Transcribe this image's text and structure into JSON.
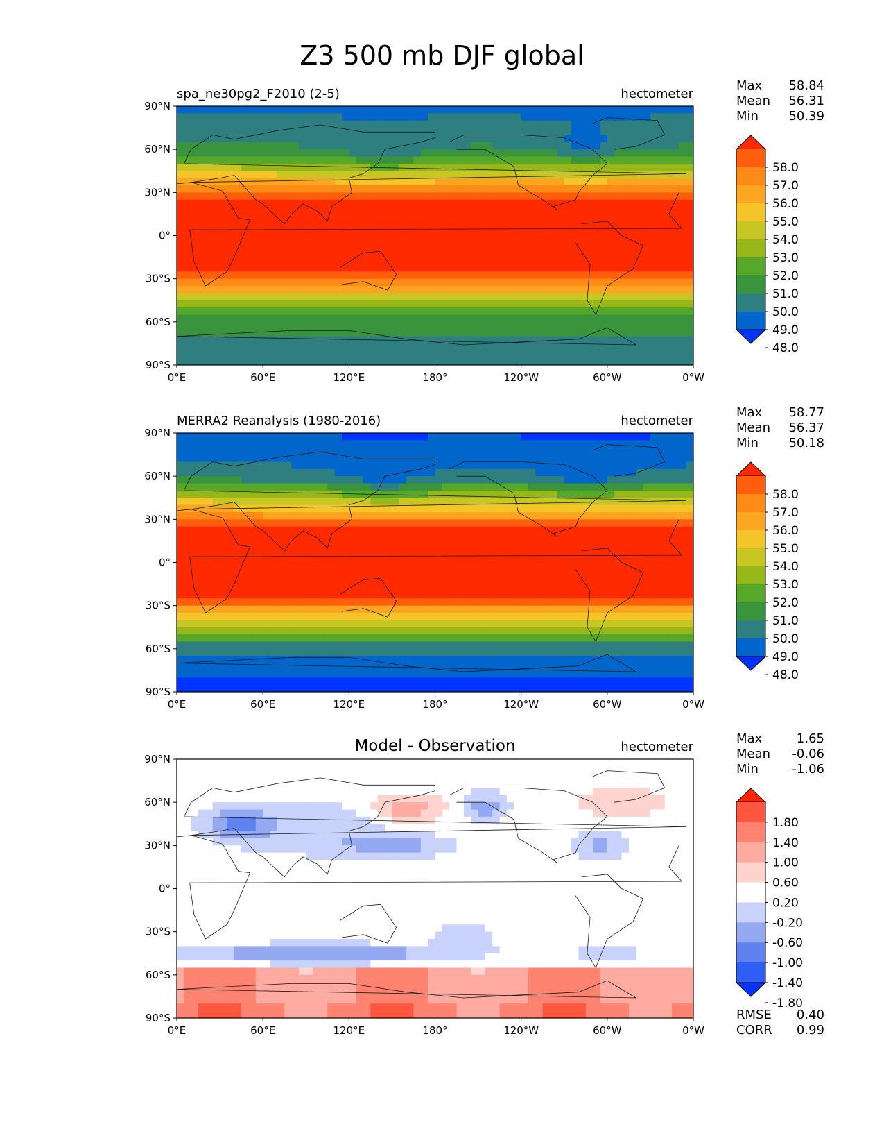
{
  "title": "Z3 500 mb DJF global",
  "colors": {
    "full_field_levels": [
      "#0033ff",
      "#0066cc",
      "#2e7f80",
      "#3a943e",
      "#55a82a",
      "#97b81a",
      "#c8c623",
      "#f4c428",
      "#fca520",
      "#ff8a15",
      "#ff5f0c",
      "#ff2a00"
    ],
    "diff_levels": [
      "#0033ff",
      "#2e5ef5",
      "#5e83f0",
      "#95a9f2",
      "#c8d2fa",
      "#ffffff",
      "#ffd4cf",
      "#ffaba1",
      "#ff8370",
      "#ff5640",
      "#ff2600"
    ]
  },
  "axes": {
    "lat_ticks": [
      "90°N",
      "60°N",
      "30°N",
      "0°",
      "30°S",
      "60°S",
      "90°S"
    ],
    "lon_ticks": [
      "0°E",
      "60°E",
      "120°E",
      "180°",
      "120°W",
      "60°W",
      "0°W"
    ]
  },
  "chart_data": [
    {
      "type": "heatmap",
      "panel": "model",
      "left_title": "spa_ne30pg2_F2010 (2-5)",
      "right_title": "hectometer",
      "stats": [
        [
          "Max",
          "58.84"
        ],
        [
          "Mean",
          "56.31"
        ],
        [
          "Min",
          "50.39"
        ]
      ],
      "colorbar_labels": [
        "58.0",
        "57.0",
        "56.0",
        "55.0",
        "54.0",
        "53.0",
        "52.0",
        "51.0",
        "50.0",
        "49.0",
        "48.0"
      ],
      "xlim": [
        0,
        360
      ],
      "ylim": [
        -90,
        90
      ]
    },
    {
      "type": "heatmap",
      "panel": "observation",
      "left_title": "MERRA2 Reanalysis (1980-2016)",
      "right_title": "hectometer",
      "stats": [
        [
          "Max",
          "58.77"
        ],
        [
          "Mean",
          "56.37"
        ],
        [
          "Min",
          "50.18"
        ]
      ],
      "colorbar_labels": [
        "58.0",
        "57.0",
        "56.0",
        "55.0",
        "54.0",
        "53.0",
        "52.0",
        "51.0",
        "50.0",
        "49.0",
        "48.0"
      ],
      "xlim": [
        0,
        360
      ],
      "ylim": [
        -90,
        90
      ]
    },
    {
      "type": "heatmap",
      "panel": "difference",
      "center_title": "Model - Observation",
      "right_title": "hectometer",
      "stats": [
        [
          "Max",
          "1.65"
        ],
        [
          "Mean",
          "-0.06"
        ],
        [
          "Min",
          "-1.06"
        ]
      ],
      "colorbar_labels": [
        "1.80",
        "1.40",
        "1.00",
        "0.60",
        "0.20",
        "-0.20",
        "-0.60",
        "-1.00",
        "-1.40",
        "-1.80"
      ],
      "metrics": [
        [
          "RMSE",
          "0.40"
        ],
        [
          "CORR",
          "0.99"
        ]
      ],
      "xlim": [
        0,
        360
      ],
      "ylim": [
        -90,
        90
      ]
    }
  ]
}
